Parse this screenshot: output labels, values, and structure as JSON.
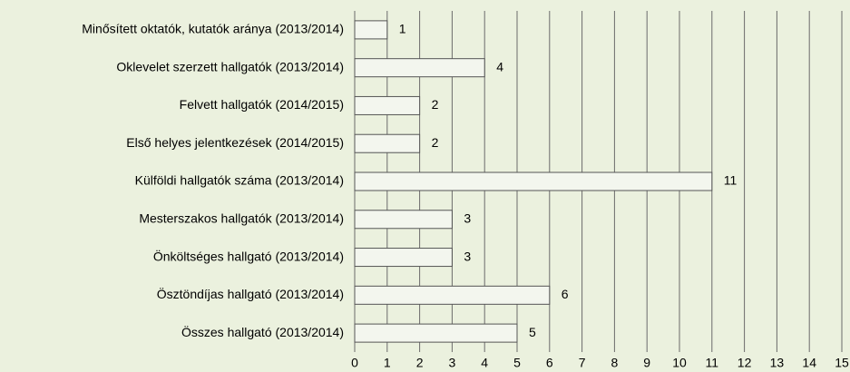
{
  "chart_data": {
    "type": "bar",
    "orientation": "horizontal",
    "categories": [
      "Minősített oktatók, kutatók aránya (2013/2014)",
      "Oklevelet szerzett hallgatók (2013/2014)",
      "Felvett hallgatók (2014/2015)",
      "Első helyes jelentkezések (2014/2015)",
      "Külföldi hallgatók száma (2013/2014)",
      "Mesterszakos hallgatók  (2013/2014)",
      "Önköltséges hallgató (2013/2014)",
      "Ösztöndíjas hallgató (2013/2014)",
      "Összes hallgató (2013/2014)"
    ],
    "values": [
      1,
      4,
      2,
      2,
      11,
      3,
      3,
      6,
      5
    ],
    "color": "#f3f6ee",
    "xlim": [
      0,
      15
    ],
    "xticks": [
      0,
      1,
      2,
      3,
      4,
      5,
      6,
      7,
      8,
      9,
      10,
      11,
      12,
      13,
      14,
      15
    ],
    "grid": true
  }
}
